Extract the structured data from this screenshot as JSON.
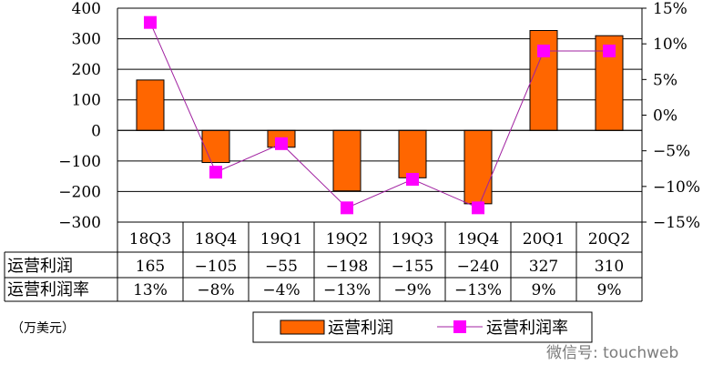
{
  "chart_data": {
    "type": "bar+line",
    "categories": [
      "18Q3",
      "18Q4",
      "19Q1",
      "19Q2",
      "19Q3",
      "19Q4",
      "20Q1",
      "20Q2"
    ],
    "series": [
      {
        "name": "运营利润",
        "type": "bar",
        "axis": "left",
        "color": "#ff6600",
        "values": [
          165,
          -105,
          -55,
          -198,
          -155,
          -240,
          327,
          310
        ]
      },
      {
        "name": "运营利润率",
        "type": "line",
        "axis": "right",
        "color": "#ff00ff",
        "values": [
          13,
          -8,
          -4,
          -13,
          -9,
          -13,
          9,
          9
        ]
      }
    ],
    "left_axis": {
      "ylim": [
        -300,
        400
      ],
      "ticks": [
        "400",
        "300",
        "200",
        "100",
        "0",
        "-100",
        "-200",
        "-300"
      ]
    },
    "right_axis": {
      "ylim": [
        -15,
        15
      ],
      "ticks": [
        "15%",
        "10%",
        "5%",
        "0%",
        "-5%",
        "-10%",
        "-15%"
      ]
    },
    "grid": true,
    "table": {
      "rows": [
        {
          "label": "运营利润",
          "cells": [
            "165",
            "−105",
            "−55",
            "−198",
            "−155",
            "−240",
            "327",
            "310"
          ]
        },
        {
          "label": "运营利润率",
          "cells": [
            "13%",
            "−8%",
            "−4%",
            "−13%",
            "−9%",
            "−13%",
            "9%",
            "9%"
          ]
        }
      ]
    },
    "unit_note": "（万美元）",
    "legend": {
      "position": "bottom",
      "items": [
        "运营利润",
        "运营利润率"
      ]
    },
    "watermark": "微信号: touchweb"
  }
}
